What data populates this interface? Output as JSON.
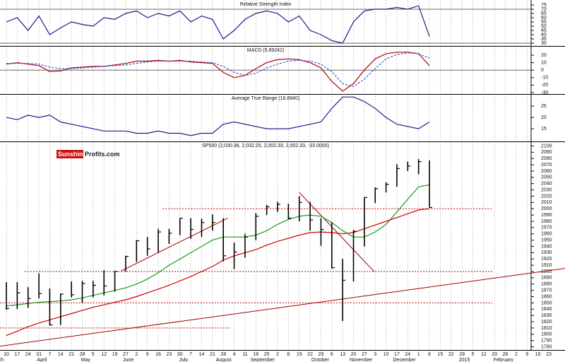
{
  "chart_data": [
    {
      "type": "line",
      "title": "Relative Strength Index",
      "color": "#1c1c8a",
      "values": [
        55,
        60,
        45,
        62,
        40,
        48,
        55,
        52,
        50,
        60,
        58,
        65,
        68,
        60,
        65,
        62,
        68,
        55,
        62,
        58,
        35,
        45,
        58,
        65,
        68,
        65,
        55,
        62,
        45,
        40,
        33,
        30,
        55,
        68,
        70,
        70,
        72,
        70,
        74,
        38
      ],
      "ylim": [
        26.7,
        79.2
      ],
      "yticks": [
        75,
        70,
        65,
        60,
        55,
        50,
        45,
        40,
        35,
        30
      ],
      "reference_lines": [
        70,
        30
      ]
    },
    {
      "type": "line",
      "title": "MACD (5.89242)",
      "series": [
        {
          "color": "#b00000",
          "values": [
            8,
            10,
            8,
            6,
            -2,
            -1,
            3,
            4,
            5,
            5,
            7,
            9,
            12,
            12,
            13,
            12,
            13,
            11,
            10,
            9,
            -3,
            -10,
            -7,
            2,
            10,
            14,
            15,
            14,
            10,
            3,
            -15,
            -28,
            -18,
            0,
            15,
            22,
            24,
            24,
            22,
            6
          ]
        },
        {
          "color": "#3a5bd6",
          "dashed": true,
          "values": [
            9,
            9,
            9,
            8,
            4,
            2,
            2,
            3,
            4,
            5,
            6,
            7,
            9,
            11,
            12,
            12,
            12,
            12,
            11,
            10,
            5,
            -3,
            -7,
            -4,
            3,
            8,
            12,
            13,
            12,
            8,
            -2,
            -18,
            -22,
            -12,
            2,
            15,
            21,
            23,
            22,
            16
          ]
        }
      ],
      "ylim": [
        -31.9,
        30.4
      ],
      "yticks": [
        20,
        10,
        0,
        -10,
        -20,
        -30
      ],
      "reference_lines": [
        0
      ]
    },
    {
      "type": "line",
      "title": "Average True Range (18.8940)",
      "color": "#1c1c8a",
      "values": [
        20,
        19,
        21,
        20,
        21,
        18,
        17,
        16,
        15,
        14,
        14,
        14,
        13,
        13,
        14,
        13,
        13,
        12,
        13,
        13,
        17,
        18,
        17,
        16,
        15,
        15,
        15,
        16,
        17,
        18,
        24,
        29,
        29,
        27,
        24,
        20,
        17,
        16,
        15,
        18
      ],
      "ylim": [
        9.4,
        29.7
      ],
      "yticks": [
        25,
        20,
        15
      ]
    },
    {
      "type": "ohlc",
      "title": "SP500 (2,030.36, 2,032.25, 2,002.33, 2,002.33, -33.0000)",
      "logo": {
        "part1": "Sunshine",
        "part2": "Profits.com"
      },
      "color": "#000000",
      "high": [
        1883,
        1883,
        1875,
        1897,
        1873,
        1865,
        1884,
        1885,
        1885,
        1902,
        1901,
        1925,
        1950,
        1955,
        1968,
        1968,
        1985,
        1985,
        1984,
        1991,
        1985,
        1946,
        1960,
        1993,
        2006,
        2011,
        2008,
        2020,
        2011,
        1985,
        1978,
        1920,
        1966,
        2018,
        2034,
        2042,
        2071,
        2075,
        2079,
        2077
      ],
      "low": [
        1839,
        1840,
        1842,
        1857,
        1814,
        1815,
        1859,
        1850,
        1859,
        1862,
        1868,
        1900,
        1915,
        1925,
        1930,
        1944,
        1958,
        1952,
        1955,
        1965,
        1916,
        1904,
        1922,
        1950,
        1990,
        1995,
        1983,
        1980,
        1965,
        1941,
        1905,
        1821,
        1884,
        1940,
        2009,
        2026,
        2035,
        2060,
        2055,
        2002
      ],
      "close": [
        1841,
        1866,
        1857,
        1865,
        1815,
        1864,
        1863,
        1881,
        1878,
        1877,
        1900,
        1924,
        1949,
        1936,
        1963,
        1961,
        1985,
        1967,
        1978,
        1978,
        1925,
        1931,
        1955,
        1988,
        2003,
        2007,
        1985,
        2010,
        1982,
        1967,
        1906,
        1886,
        1964,
        2018,
        2032,
        2039,
        2064,
        2068,
        2075,
        2002
      ],
      "series": [
        {
          "color": "#1a9a1a",
          "values": [
            1845,
            1847,
            1849,
            1851,
            1852,
            1853,
            1855,
            1858,
            1862,
            1866,
            1870,
            1874,
            1880,
            1888,
            1898,
            1910,
            1920,
            1930,
            1940,
            1950,
            1955,
            1955,
            1955,
            1958,
            1965,
            1975,
            1983,
            1988,
            1990,
            1988,
            1978,
            1965,
            1955,
            1955,
            1963,
            1975,
            1995,
            2015,
            2035,
            2038
          ]
        },
        {
          "color": "#d00000",
          "values": [
            1798,
            1805,
            1812,
            1818,
            1823,
            1828,
            1833,
            1838,
            1843,
            1847,
            1851,
            1855,
            1860,
            1866,
            1872,
            1878,
            1885,
            1892,
            1900,
            1908,
            1918,
            1925,
            1930,
            1935,
            1942,
            1948,
            1953,
            1958,
            1962,
            1963,
            1962,
            1960,
            1962,
            1968,
            1974,
            1980,
            1986,
            1992,
            1998,
            2000
          ]
        }
      ],
      "levels": [
        {
          "value": 2000,
          "x": [
            14.4,
            44.8
          ]
        },
        {
          "value": 1900,
          "x": [
            1.7,
            44.8
          ]
        },
        {
          "value": 1850,
          "x": [
            -0.6,
            44.8
          ]
        },
        {
          "value": 1810,
          "x": [
            -0.6,
            20.6
          ]
        }
      ],
      "trendlines": [
        {
          "x": [
            -0.6,
            51.5
          ],
          "y": [
            1781,
            1905
          ]
        },
        {
          "x": [
            10.6,
            20.4
          ],
          "y": [
            1901,
            1985
          ]
        },
        {
          "x": [
            27,
            33.9
          ],
          "y": [
            2026,
            1900
          ]
        }
      ],
      "ylim": [
        1775,
        2105
      ],
      "yticks": [
        2100,
        2090,
        2080,
        2070,
        2060,
        2050,
        2040,
        2030,
        2020,
        2010,
        2000,
        1990,
        1980,
        1970,
        1960,
        1950,
        1940,
        1930,
        1920,
        1910,
        1900,
        1890,
        1880,
        1870,
        1860,
        1850,
        1840,
        1830,
        1820,
        1810,
        1800,
        1790,
        1780
      ]
    }
  ],
  "x_axis": {
    "weeks": [
      {
        "day": "10",
        "month": "rch"
      },
      {
        "day": "17"
      },
      {
        "day": "24"
      },
      {
        "day": "31"
      },
      {
        "day": "7",
        "month": "April"
      },
      {
        "day": "14"
      },
      {
        "day": "21"
      },
      {
        "day": "28"
      },
      {
        "day": "5",
        "month": "May"
      },
      {
        "day": "12"
      },
      {
        "day": "19"
      },
      {
        "day": "27"
      },
      {
        "day": "2",
        "month": "June"
      },
      {
        "day": "9"
      },
      {
        "day": "16"
      },
      {
        "day": "23"
      },
      {
        "day": "30"
      },
      {
        "day": "7",
        "month": "July"
      },
      {
        "day": "14"
      },
      {
        "day": "21"
      },
      {
        "day": "28"
      },
      {
        "day": "4",
        "month": "August"
      },
      {
        "day": "11"
      },
      {
        "day": "18"
      },
      {
        "day": "25"
      },
      {
        "day": "2",
        "month": "September"
      },
      {
        "day": "8"
      },
      {
        "day": "15"
      },
      {
        "day": "22"
      },
      {
        "day": "29"
      },
      {
        "day": "6",
        "month": "October"
      },
      {
        "day": "13"
      },
      {
        "day": "20"
      },
      {
        "day": "27"
      },
      {
        "day": "3",
        "month": "November"
      },
      {
        "day": "10"
      },
      {
        "day": "17"
      },
      {
        "day": "24"
      },
      {
        "day": "1",
        "month": "December"
      },
      {
        "day": "8"
      },
      {
        "day": "15"
      },
      {
        "day": "22"
      },
      {
        "day": "29"
      },
      {
        "day": "5",
        "month": "2015"
      },
      {
        "day": "12"
      },
      {
        "day": "20"
      },
      {
        "day": "26"
      },
      {
        "day": "2",
        "month": "February"
      },
      {
        "day": "9"
      },
      {
        "day": "16"
      },
      {
        "day": "23"
      }
    ]
  }
}
